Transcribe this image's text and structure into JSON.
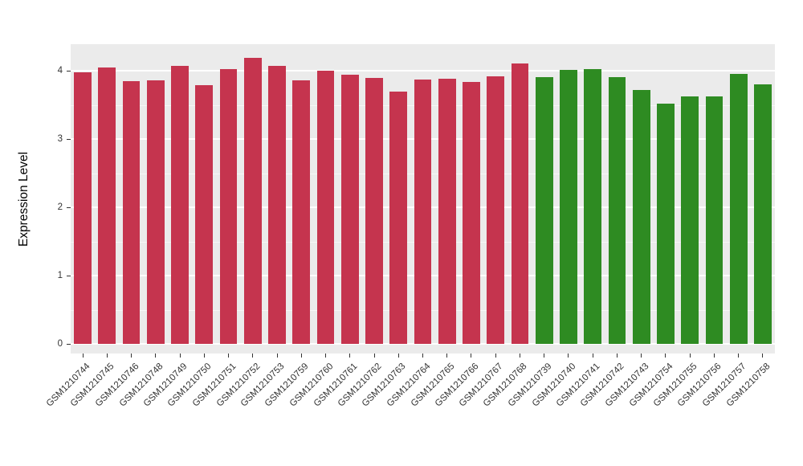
{
  "figure": {
    "background": "#ffffff",
    "panel_background": "#EBEBEB",
    "gridline_color": "#ffffff",
    "axis_text_color": "#333333"
  },
  "chart_data": {
    "type": "bar",
    "title": "",
    "xlabel": "",
    "ylabel": "Expression Level",
    "ylim": [
      0,
      4.39
    ],
    "yticks": [
      0,
      1,
      2,
      3,
      4
    ],
    "grid": true,
    "legend": "none",
    "palette": {
      "red": "#C5344E",
      "green": "#2E8B22"
    },
    "categories": [
      "GSM1210744",
      "GSM1210745",
      "GSM1210746",
      "GSM1210748",
      "GSM1210749",
      "GSM1210750",
      "GSM1210751",
      "GSM1210752",
      "GSM1210753",
      "GSM1210759",
      "GSM1210760",
      "GSM1210761",
      "GSM1210762",
      "GSM1210763",
      "GSM1210764",
      "GSM1210765",
      "GSM1210766",
      "GSM1210767",
      "GSM1210768",
      "GSM1210739",
      "GSM1210740",
      "GSM1210741",
      "GSM1210742",
      "GSM1210743",
      "GSM1210754",
      "GSM1210755",
      "GSM1210756",
      "GSM1210757",
      "GSM1210758"
    ],
    "values": [
      3.98,
      4.05,
      3.85,
      3.86,
      4.07,
      3.79,
      4.02,
      4.19,
      4.07,
      3.86,
      4.0,
      3.94,
      3.89,
      3.69,
      3.87,
      3.88,
      3.84,
      3.92,
      4.11,
      3.91,
      4.01,
      4.02,
      3.91,
      3.72,
      3.52,
      3.62,
      3.62,
      3.96,
      3.8
    ],
    "groups": [
      "red",
      "red",
      "red",
      "red",
      "red",
      "red",
      "red",
      "red",
      "red",
      "red",
      "red",
      "red",
      "red",
      "red",
      "red",
      "red",
      "red",
      "red",
      "red",
      "green",
      "green",
      "green",
      "green",
      "green",
      "green",
      "green",
      "green",
      "green",
      "green"
    ]
  }
}
